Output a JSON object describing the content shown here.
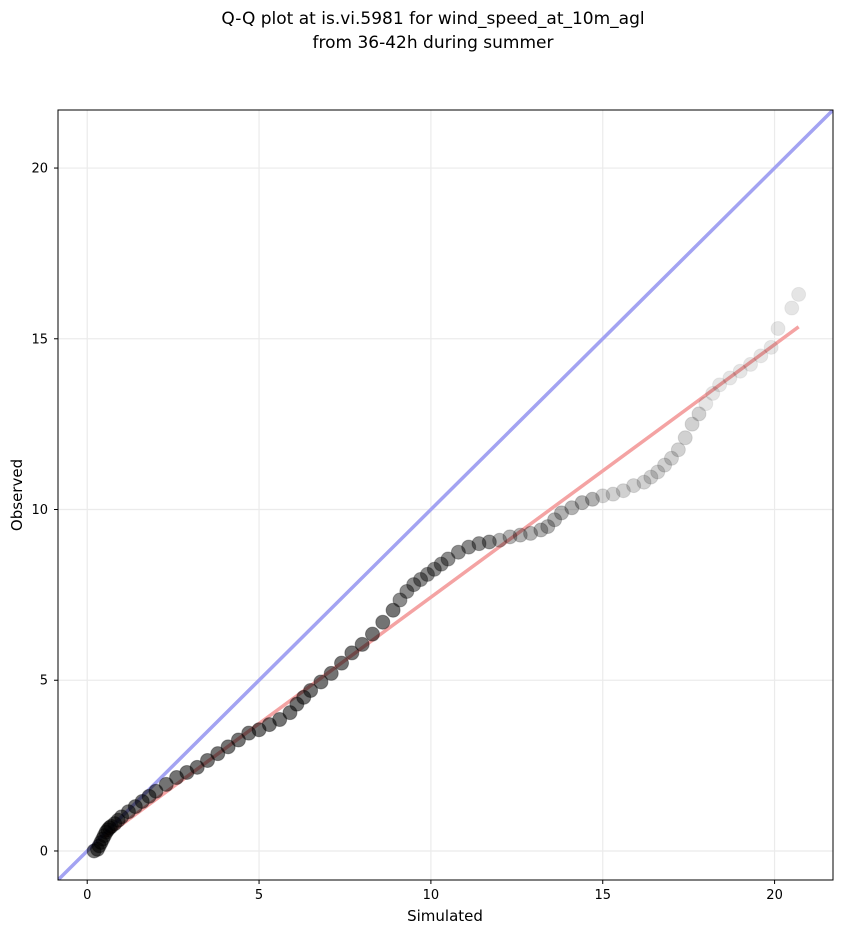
{
  "chart_data": {
    "type": "scatter",
    "title_lines": [
      "Q-Q plot at is.vi.5981 for wind_speed_at_10m_agl",
      "from 36-42h during summer"
    ],
    "xlabel": "Simulated",
    "ylabel": "Observed",
    "xlim": [
      -0.85,
      21.7
    ],
    "ylim": [
      -0.85,
      21.7
    ],
    "xticks": [
      0,
      5,
      10,
      15,
      20
    ],
    "yticks": [
      0,
      5,
      10,
      15,
      20
    ],
    "grid": true,
    "reference_line": {
      "kind": "y=x",
      "color": "#a3a3f2"
    },
    "fit_line": {
      "x": [
        0.5,
        20.7
      ],
      "y": [
        0.4,
        15.35
      ],
      "color": "#f4a3a3"
    },
    "marker_color": "#000000",
    "points": {
      "x": [
        0.2,
        0.3,
        0.35,
        0.4,
        0.45,
        0.5,
        0.55,
        0.6,
        0.65,
        0.7,
        0.8,
        0.9,
        1.0,
        1.2,
        1.4,
        1.6,
        1.8,
        2.0,
        2.3,
        2.6,
        2.9,
        3.2,
        3.5,
        3.8,
        4.1,
        4.4,
        4.7,
        5.0,
        5.3,
        5.6,
        5.9,
        6.1,
        6.3,
        6.5,
        6.8,
        7.1,
        7.4,
        7.7,
        8.0,
        8.3,
        8.6,
        8.9,
        9.1,
        9.3,
        9.5,
        9.7,
        9.9,
        10.1,
        10.3,
        10.5,
        10.8,
        11.1,
        11.4,
        11.7,
        12.0,
        12.3,
        12.6,
        12.9,
        13.2,
        13.4,
        13.6,
        13.8,
        14.1,
        14.4,
        14.7,
        15.0,
        15.3,
        15.6,
        15.9,
        16.2,
        16.4,
        16.6,
        16.8,
        17.0,
        17.2,
        17.4,
        17.6,
        17.8,
        18.0,
        18.2,
        18.4,
        18.7,
        19.0,
        19.3,
        19.6,
        19.9,
        20.1,
        20.5,
        20.7
      ],
      "y": [
        0.0,
        0.05,
        0.15,
        0.25,
        0.35,
        0.45,
        0.55,
        0.62,
        0.68,
        0.72,
        0.8,
        0.9,
        1.0,
        1.15,
        1.3,
        1.45,
        1.6,
        1.75,
        1.95,
        2.15,
        2.3,
        2.45,
        2.65,
        2.85,
        3.05,
        3.25,
        3.45,
        3.55,
        3.7,
        3.85,
        4.05,
        4.3,
        4.5,
        4.7,
        4.95,
        5.2,
        5.5,
        5.8,
        6.05,
        6.35,
        6.7,
        7.05,
        7.35,
        7.6,
        7.8,
        7.95,
        8.1,
        8.25,
        8.4,
        8.55,
        8.75,
        8.9,
        9.0,
        9.05,
        9.1,
        9.2,
        9.25,
        9.3,
        9.4,
        9.5,
        9.7,
        9.9,
        10.05,
        10.2,
        10.3,
        10.4,
        10.45,
        10.55,
        10.7,
        10.8,
        10.95,
        11.1,
        11.3,
        11.5,
        11.75,
        12.1,
        12.5,
        12.8,
        13.1,
        13.4,
        13.65,
        13.85,
        14.05,
        14.25,
        14.5,
        14.75,
        15.3,
        15.9,
        16.3
      ]
    }
  }
}
